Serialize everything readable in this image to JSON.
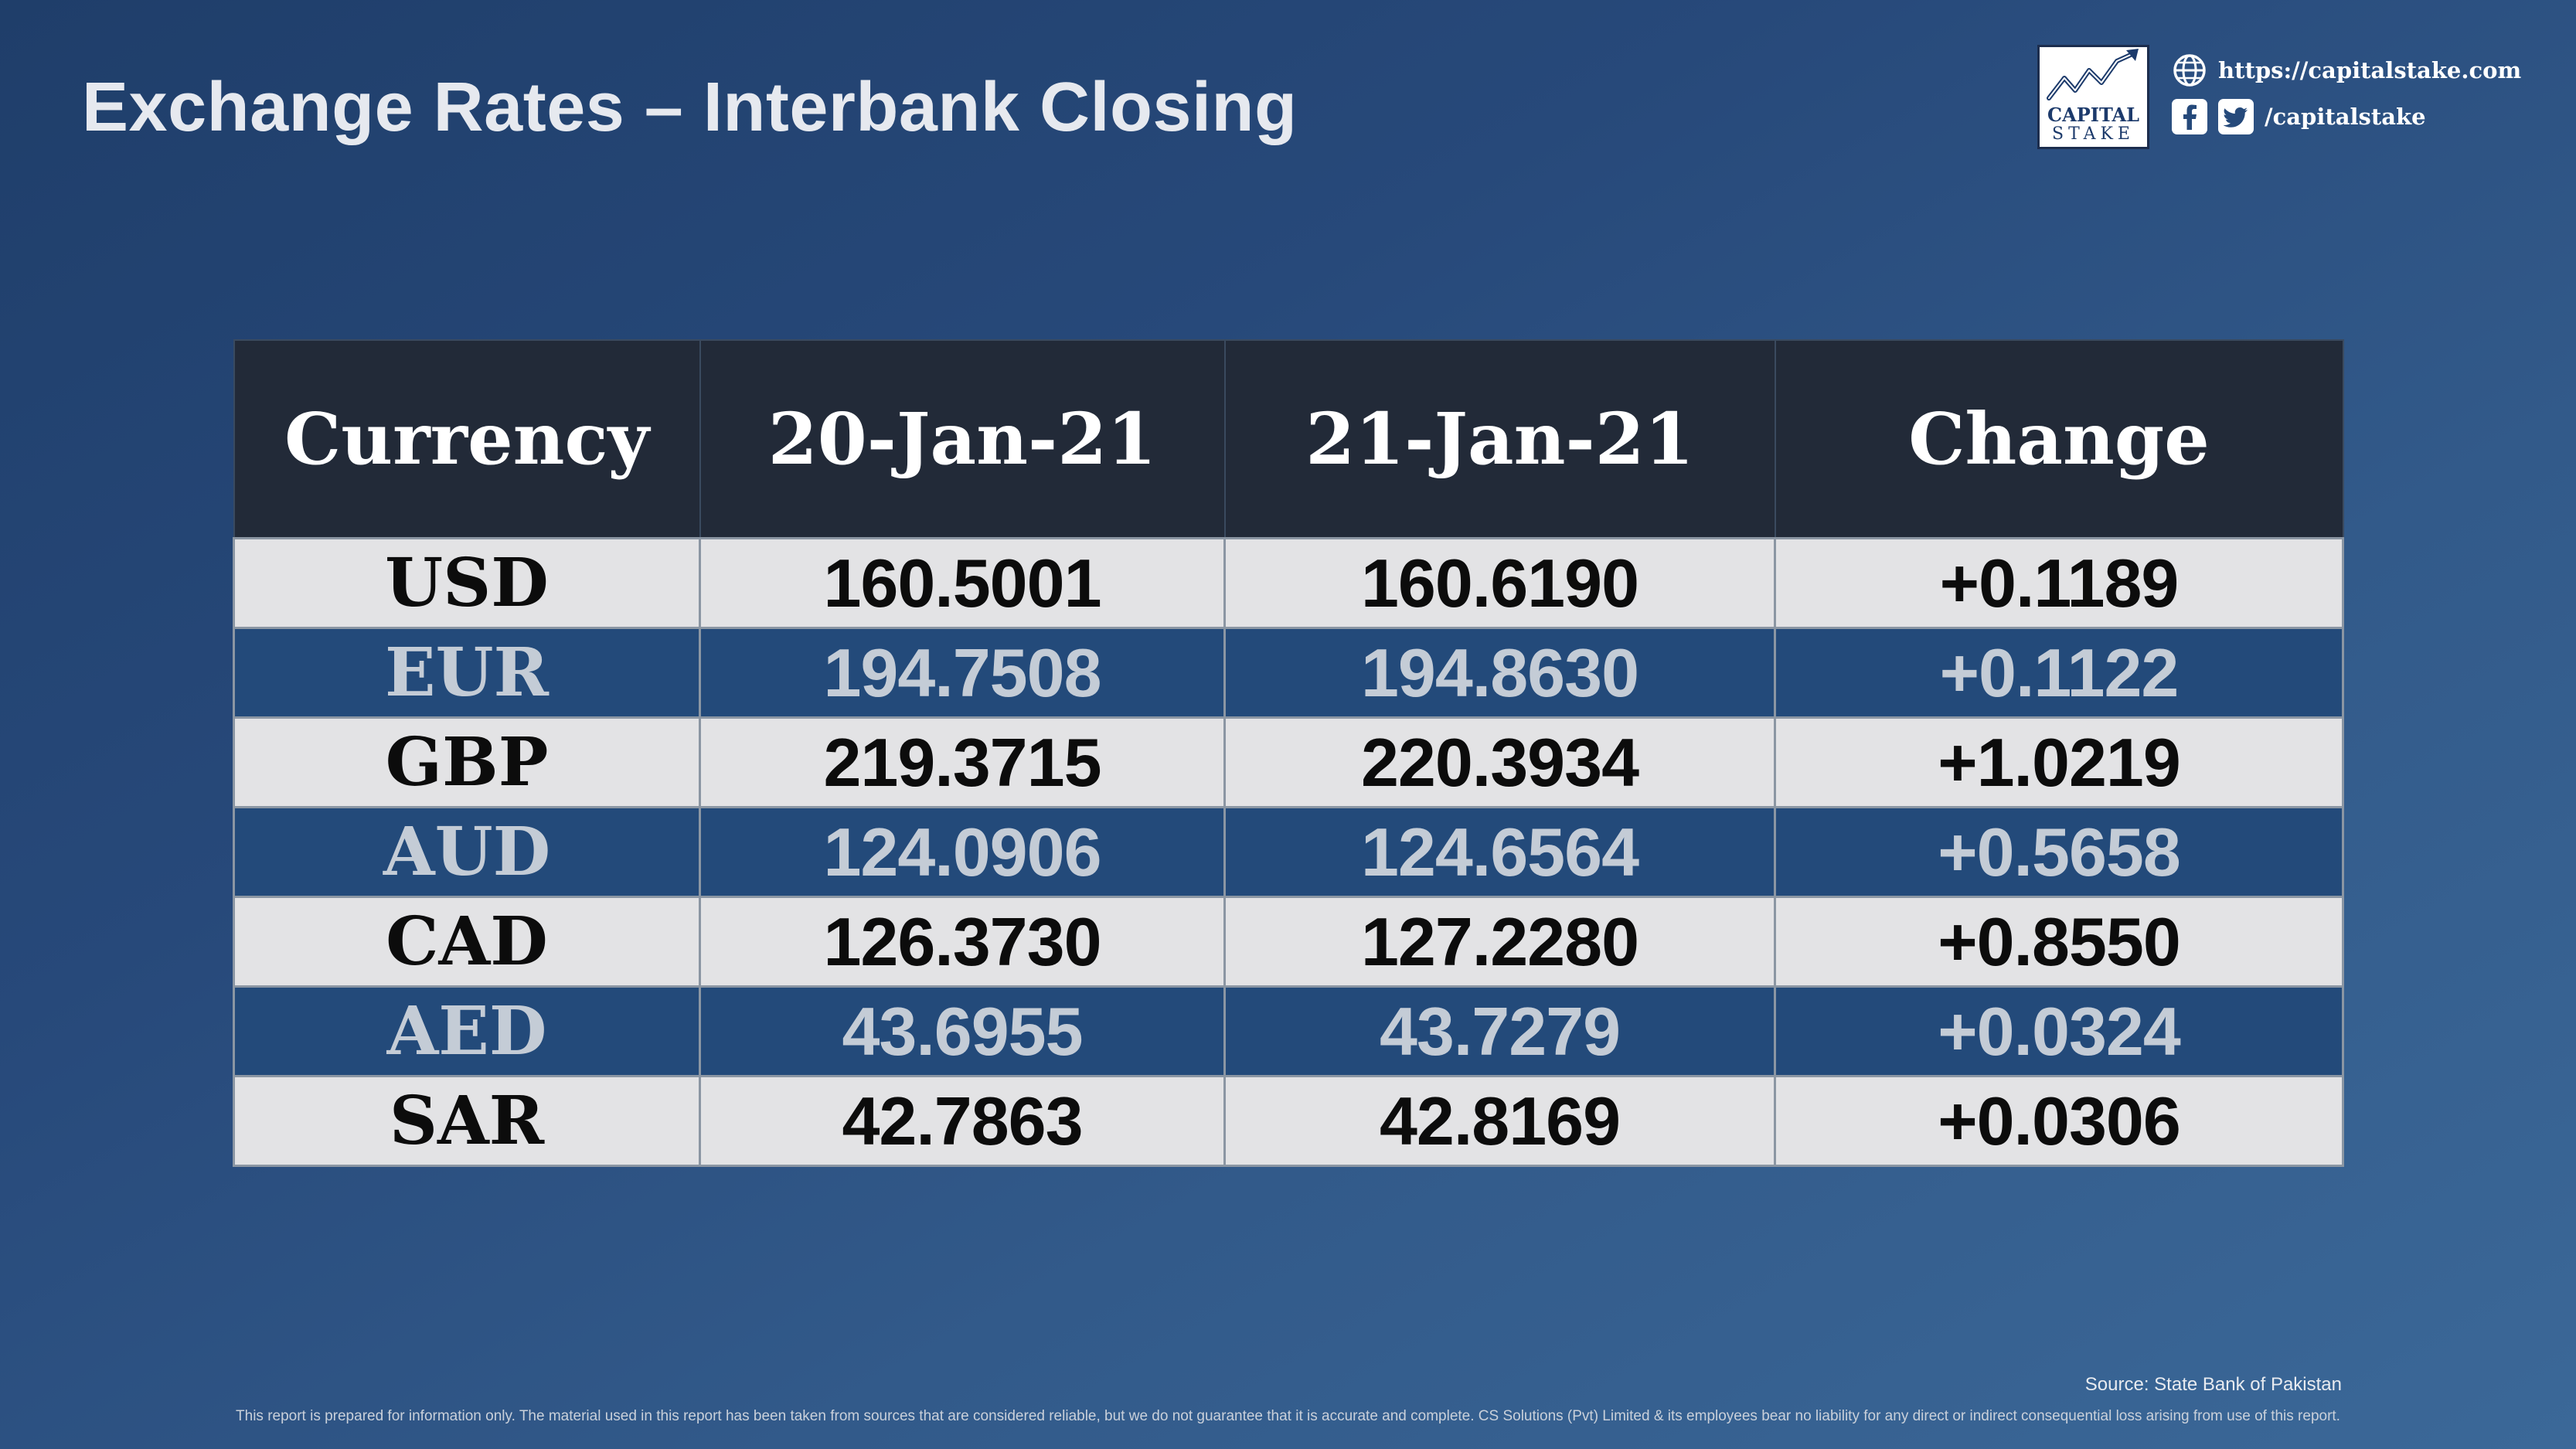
{
  "title": "Exchange Rates – Interbank Closing",
  "brand": {
    "word1": "CAPITAL",
    "word2": "STAKE",
    "website": "https://capitalstake.com",
    "social_handle": "/capitalstake"
  },
  "icons": {
    "logo": "rising-chart-logo",
    "web": "globe-icon",
    "facebook": "facebook-icon",
    "twitter": "twitter-icon"
  },
  "table": {
    "headers": [
      "Currency",
      "20-Jan-21",
      "21-Jan-21",
      "Change"
    ],
    "rows": [
      [
        "USD",
        "160.5001",
        "160.6190",
        "+0.1189"
      ],
      [
        "EUR",
        "194.7508",
        "194.8630",
        "+0.1122"
      ],
      [
        "GBP",
        "219.3715",
        "220.3934",
        "+1.0219"
      ],
      [
        "AUD",
        "124.0906",
        "124.6564",
        "+0.5658"
      ],
      [
        "CAD",
        "126.3730",
        "127.2280",
        "+0.8550"
      ],
      [
        "AED",
        "43.6955",
        "43.7279",
        "+0.0324"
      ],
      [
        "SAR",
        "42.7863",
        "42.8169",
        "+0.0306"
      ]
    ]
  },
  "colors": {
    "header_bg": "#222a38",
    "row_light_bg": "#e3e3e5",
    "row_dark_bg": "#234a7a",
    "row_dark_text": "#c4ccd6",
    "background": "#27497a"
  },
  "source": "Source: State Bank of Pakistan",
  "disclaimer": "This report is prepared for information only. The material used in this report has been taken from sources that are considered reliable, but we do not guarantee that it is accurate and complete. CS Solutions (Pvt) Limited & its employees bear no liability for any direct or indirect consequential loss arising from use of this report."
}
